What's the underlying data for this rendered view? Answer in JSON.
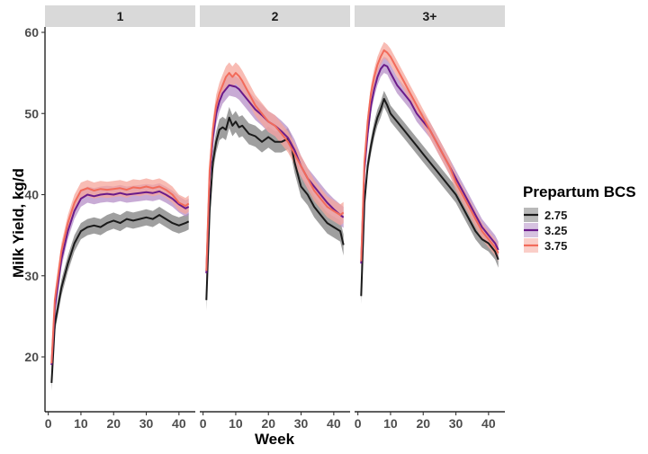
{
  "chart_data": {
    "type": "line",
    "xlabel": "Week",
    "ylabel": "Milk Yield, kg/d",
    "xlim": [
      -1,
      45
    ],
    "ylim": [
      15.5,
      61
    ],
    "x_ticks": [
      0,
      10,
      20,
      30,
      40
    ],
    "y_ticks": [
      20,
      30,
      40,
      50,
      60
    ],
    "grid": false,
    "legend": {
      "title": "Prepartum BCS",
      "position": "right",
      "entries": [
        "2.75",
        "3.25",
        "3.75"
      ]
    },
    "series_colors": {
      "2.75": "#1a1a1a",
      "3.25": "#6a1b8a",
      "3.75": "#f26b5b"
    },
    "band_colors": {
      "2.75": "#7f7f7f",
      "3.25": "#b58fc7",
      "3.75": "#f6a69b"
    },
    "panels": [
      {
        "label": "1",
        "band_halfwidth": 1.0,
        "series": [
          {
            "name": "2.75",
            "points": [
              [
                1,
                16.8
              ],
              [
                2,
                24
              ],
              [
                4,
                28.5
              ],
              [
                6,
                31.5
              ],
              [
                8,
                34
              ],
              [
                10,
                35.5
              ],
              [
                12,
                36
              ],
              [
                14,
                36.2
              ],
              [
                16,
                36
              ],
              [
                18,
                36.5
              ],
              [
                20,
                36.8
              ],
              [
                22,
                36.5
              ],
              [
                24,
                37
              ],
              [
                26,
                36.8
              ],
              [
                28,
                37
              ],
              [
                30,
                37.2
              ],
              [
                32,
                37
              ],
              [
                34,
                37.5
              ],
              [
                36,
                37
              ],
              [
                38,
                36.5
              ],
              [
                40,
                36.2
              ],
              [
                42,
                36.5
              ],
              [
                43,
                36.7
              ]
            ]
          },
          {
            "name": "3.25",
            "points": [
              [
                1,
                19
              ],
              [
                2,
                26
              ],
              [
                4,
                32
              ],
              [
                6,
                35.5
              ],
              [
                8,
                38
              ],
              [
                10,
                39.5
              ],
              [
                12,
                40
              ],
              [
                14,
                39.8
              ],
              [
                16,
                40
              ],
              [
                18,
                40.1
              ],
              [
                20,
                40
              ],
              [
                22,
                40.2
              ],
              [
                24,
                40
              ],
              [
                26,
                40.1
              ],
              [
                28,
                40.2
              ],
              [
                30,
                40.3
              ],
              [
                32,
                40.2
              ],
              [
                34,
                40.4
              ],
              [
                36,
                40
              ],
              [
                38,
                39.5
              ],
              [
                40,
                38.8
              ],
              [
                42,
                38.3
              ],
              [
                43,
                38.5
              ]
            ]
          },
          {
            "name": "3.75",
            "points": [
              [
                1,
                19.2
              ],
              [
                2,
                27
              ],
              [
                4,
                33
              ],
              [
                6,
                36.5
              ],
              [
                8,
                39
              ],
              [
                10,
                40.5
              ],
              [
                12,
                40.8
              ],
              [
                14,
                40.5
              ],
              [
                16,
                40.7
              ],
              [
                18,
                40.6
              ],
              [
                20,
                40.7
              ],
              [
                22,
                40.8
              ],
              [
                24,
                40.6
              ],
              [
                26,
                40.9
              ],
              [
                28,
                40.8
              ],
              [
                30,
                41
              ],
              [
                32,
                40.8
              ],
              [
                34,
                41
              ],
              [
                36,
                40.6
              ],
              [
                38,
                40
              ],
              [
                40,
                39
              ],
              [
                42,
                38.6
              ],
              [
                43,
                38.9
              ]
            ]
          }
        ]
      },
      {
        "label": "2",
        "band_halfwidth": 1.3,
        "series": [
          {
            "name": "2.75",
            "points": [
              [
                1,
                27
              ],
              [
                2,
                38
              ],
              [
                3,
                44
              ],
              [
                4,
                46.5
              ],
              [
                5,
                48
              ],
              [
                6,
                48.3
              ],
              [
                7,
                48
              ],
              [
                8,
                49.5
              ],
              [
                9,
                48.5
              ],
              [
                10,
                49
              ],
              [
                11,
                48.3
              ],
              [
                12,
                48.5
              ],
              [
                14,
                47.5
              ],
              [
                16,
                47.2
              ],
              [
                18,
                46.5
              ],
              [
                20,
                47.1
              ],
              [
                22,
                46.5
              ],
              [
                24,
                46.5
              ],
              [
                26,
                46.9
              ],
              [
                27,
                46
              ],
              [
                28,
                44
              ],
              [
                30,
                41
              ],
              [
                32,
                40
              ],
              [
                34,
                38.5
              ],
              [
                36,
                37.5
              ],
              [
                38,
                36.5
              ],
              [
                40,
                36
              ],
              [
                42,
                35.5
              ],
              [
                43,
                33.8
              ]
            ]
          },
          {
            "name": "3.25",
            "points": [
              [
                1,
                30.3
              ],
              [
                2,
                42
              ],
              [
                3,
                47
              ],
              [
                4,
                50
              ],
              [
                5,
                51.5
              ],
              [
                6,
                52.5
              ],
              [
                7,
                53
              ],
              [
                8,
                53.5
              ],
              [
                9,
                53.4
              ],
              [
                10,
                53.3
              ],
              [
                11,
                53
              ],
              [
                12,
                52.5
              ],
              [
                14,
                51.5
              ],
              [
                16,
                50.5
              ],
              [
                18,
                49.8
              ],
              [
                20,
                49
              ],
              [
                22,
                48.5
              ],
              [
                24,
                47.8
              ],
              [
                26,
                47
              ],
              [
                28,
                45.5
              ],
              [
                30,
                43.5
              ],
              [
                32,
                42
              ],
              [
                34,
                41
              ],
              [
                36,
                40
              ],
              [
                38,
                39
              ],
              [
                40,
                38.2
              ],
              [
                42,
                37.5
              ],
              [
                43,
                37.2
              ]
            ]
          },
          {
            "name": "3.75",
            "points": [
              [
                1,
                30.6
              ],
              [
                2,
                43
              ],
              [
                3,
                48
              ],
              [
                4,
                51
              ],
              [
                5,
                52.5
              ],
              [
                6,
                53.5
              ],
              [
                7,
                54.5
              ],
              [
                8,
                55
              ],
              [
                9,
                54.5
              ],
              [
                10,
                55
              ],
              [
                11,
                54.6
              ],
              [
                12,
                54
              ],
              [
                14,
                52.5
              ],
              [
                16,
                51
              ],
              [
                18,
                50
              ],
              [
                20,
                49
              ],
              [
                22,
                48.5
              ],
              [
                24,
                47.5
              ],
              [
                26,
                46.5
              ],
              [
                28,
                45
              ],
              [
                30,
                43.5
              ],
              [
                32,
                42
              ],
              [
                34,
                40.5
              ],
              [
                36,
                39.5
              ],
              [
                38,
                38.5
              ],
              [
                40,
                38
              ],
              [
                42,
                37.5
              ],
              [
                43,
                37.8
              ]
            ]
          }
        ]
      },
      {
        "label": "3+",
        "band_halfwidth": 1.0,
        "series": [
          {
            "name": "2.75",
            "points": [
              [
                1,
                27.5
              ],
              [
                2,
                39
              ],
              [
                3,
                43.5
              ],
              [
                4,
                46
              ],
              [
                5,
                48
              ],
              [
                6,
                49.5
              ],
              [
                7,
                50.5
              ],
              [
                8,
                51.8
              ],
              [
                9,
                51
              ],
              [
                10,
                50
              ],
              [
                12,
                49
              ],
              [
                14,
                48
              ],
              [
                16,
                47
              ],
              [
                18,
                46
              ],
              [
                20,
                45
              ],
              [
                22,
                44
              ],
              [
                24,
                43
              ],
              [
                26,
                42
              ],
              [
                28,
                41
              ],
              [
                30,
                40
              ],
              [
                32,
                38.5
              ],
              [
                34,
                37
              ],
              [
                36,
                35.5
              ],
              [
                38,
                34.5
              ],
              [
                40,
                34
              ],
              [
                42,
                33
              ],
              [
                43,
                32
              ]
            ]
          },
          {
            "name": "3.25",
            "points": [
              [
                1,
                31.5
              ],
              [
                2,
                43
              ],
              [
                3,
                47.5
              ],
              [
                4,
                51
              ],
              [
                5,
                53
              ],
              [
                6,
                54.5
              ],
              [
                7,
                55.5
              ],
              [
                8,
                56
              ],
              [
                9,
                55.8
              ],
              [
                10,
                55
              ],
              [
                12,
                53.5
              ],
              [
                14,
                52.5
              ],
              [
                16,
                51.5
              ],
              [
                18,
                50
              ],
              [
                20,
                49
              ],
              [
                22,
                48
              ],
              [
                24,
                46.5
              ],
              [
                26,
                45
              ],
              [
                28,
                43.5
              ],
              [
                30,
                42
              ],
              [
                32,
                40.5
              ],
              [
                34,
                39
              ],
              [
                36,
                37.5
              ],
              [
                38,
                36
              ],
              [
                40,
                35
              ],
              [
                42,
                34
              ],
              [
                43,
                33.2
              ]
            ]
          },
          {
            "name": "3.75",
            "points": [
              [
                1,
                31.8
              ],
              [
                2,
                44
              ],
              [
                3,
                49
              ],
              [
                4,
                52.5
              ],
              [
                5,
                54.5
              ],
              [
                6,
                56
              ],
              [
                7,
                57
              ],
              [
                8,
                57.8
              ],
              [
                9,
                57.5
              ],
              [
                10,
                57
              ],
              [
                12,
                55.5
              ],
              [
                14,
                54
              ],
              [
                16,
                52.5
              ],
              [
                18,
                51
              ],
              [
                20,
                49.5
              ],
              [
                22,
                48
              ],
              [
                24,
                46.5
              ],
              [
                26,
                45
              ],
              [
                28,
                43.5
              ],
              [
                30,
                41.5
              ],
              [
                32,
                40
              ],
              [
                34,
                38.5
              ],
              [
                36,
                37
              ],
              [
                38,
                35.5
              ],
              [
                40,
                34.5
              ],
              [
                42,
                33.5
              ],
              [
                43,
                32.8
              ]
            ]
          }
        ]
      }
    ]
  }
}
